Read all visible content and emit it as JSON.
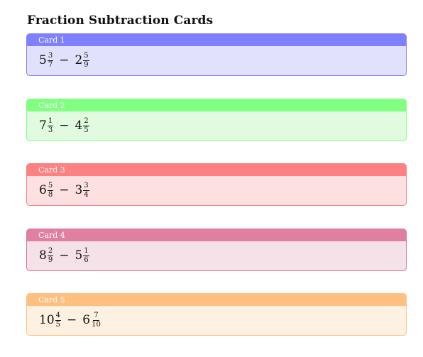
{
  "title": "Fraction Subtraction Cards",
  "cards": [
    {
      "label": "Card 1",
      "colors": {
        "header": "#8080ff",
        "body": "#e1e1fb",
        "border": "#8080ff"
      },
      "a": {
        "whole": "5",
        "num": "3",
        "den": "7"
      },
      "operator": "−",
      "b": {
        "whole": "2",
        "num": "5",
        "den": "9"
      }
    },
    {
      "label": "Card 2",
      "colors": {
        "header": "#80ff80",
        "body": "#e1fbe1",
        "border": "#80ff80"
      },
      "a": {
        "whole": "7",
        "num": "1",
        "den": "3"
      },
      "operator": "−",
      "b": {
        "whole": "4",
        "num": "2",
        "den": "5"
      }
    },
    {
      "label": "Card 3",
      "colors": {
        "header": "#ff8080",
        "body": "#fde1e1",
        "border": "#ee8080"
      },
      "a": {
        "whole": "6",
        "num": "5",
        "den": "8"
      },
      "operator": "−",
      "b": {
        "whole": "3",
        "num": "3",
        "den": "4"
      }
    },
    {
      "label": "Card 4",
      "colors": {
        "header": "#e07fa0",
        "body": "#f5e1e8",
        "border": "#d6769a"
      },
      "a": {
        "whole": "8",
        "num": "2",
        "den": "9"
      },
      "operator": "−",
      "b": {
        "whole": "5",
        "num": "1",
        "den": "6"
      }
    },
    {
      "label": "Card 5",
      "colors": {
        "header": "#ffbf80",
        "body": "#fff1e1",
        "border": "#ffbf80"
      },
      "a": {
        "whole": "10",
        "num": "4",
        "den": "5"
      },
      "operator": "−",
      "b": {
        "whole": "6",
        "num": "7",
        "den": "10"
      }
    }
  ]
}
